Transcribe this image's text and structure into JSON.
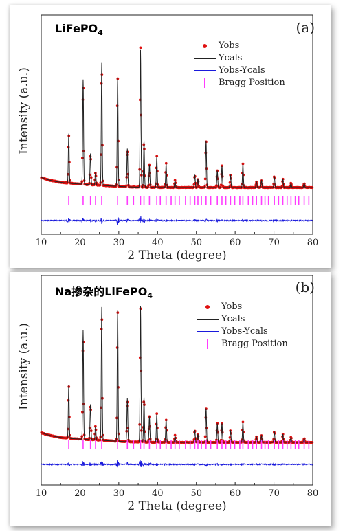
{
  "chart_data": [
    {
      "type": "line",
      "panel": "(a)",
      "title_text": "LiFePO",
      "title_sub": "4",
      "xlabel": "2 Theta (degree)",
      "ylabel": "Intensity (a.u.)",
      "xlim": [
        10,
        80
      ],
      "xticks": [
        10,
        20,
        30,
        40,
        50,
        60,
        70,
        80
      ],
      "yaxis_ticks_shown": false,
      "legend": [
        "Yobs",
        "Ycals",
        "Yobs-Ycals",
        "Bragg Position"
      ],
      "legend_position": "top-right",
      "colors": {
        "Yobs": "#e01010",
        "Ycals": "#222222",
        "Yobs-Ycals": "#1a1adc",
        "Bragg Position": "#ff3cff"
      },
      "peaks": [
        {
          "x": 17.1,
          "y": 0.35
        },
        {
          "x": 20.8,
          "y": 0.74
        },
        {
          "x": 22.7,
          "y": 0.22
        },
        {
          "x": 24.0,
          "y": 0.09
        },
        {
          "x": 25.6,
          "y": 0.87
        },
        {
          "x": 29.7,
          "y": 0.77
        },
        {
          "x": 32.2,
          "y": 0.27
        },
        {
          "x": 35.6,
          "y": 0.97
        },
        {
          "x": 36.5,
          "y": 0.33
        },
        {
          "x": 37.9,
          "y": 0.16
        },
        {
          "x": 39.8,
          "y": 0.22
        },
        {
          "x": 42.2,
          "y": 0.17
        },
        {
          "x": 44.5,
          "y": 0.05
        },
        {
          "x": 49.6,
          "y": 0.09
        },
        {
          "x": 50.4,
          "y": 0.06
        },
        {
          "x": 52.5,
          "y": 0.33
        },
        {
          "x": 55.4,
          "y": 0.12
        },
        {
          "x": 56.6,
          "y": 0.15
        },
        {
          "x": 58.8,
          "y": 0.09
        },
        {
          "x": 62.0,
          "y": 0.17
        },
        {
          "x": 65.5,
          "y": 0.04
        },
        {
          "x": 66.8,
          "y": 0.05
        },
        {
          "x": 70.1,
          "y": 0.08
        },
        {
          "x": 72.3,
          "y": 0.06
        },
        {
          "x": 74.4,
          "y": 0.03
        },
        {
          "x": 77.8,
          "y": 0.03
        }
      ],
      "bragg_positions": [
        17.1,
        20.8,
        22.7,
        24.0,
        25.6,
        29.7,
        32.2,
        33.8,
        35.6,
        36.5,
        37.9,
        39.8,
        40.7,
        42.2,
        43.5,
        44.5,
        45.6,
        47.2,
        48.4,
        49.6,
        50.4,
        51.3,
        52.5,
        53.7,
        55.4,
        56.6,
        57.6,
        58.8,
        59.9,
        61.2,
        62.0,
        63.4,
        64.5,
        65.5,
        66.8,
        67.7,
        68.6,
        70.1,
        71.2,
        72.3,
        73.4,
        74.4,
        75.5,
        76.4,
        77.8,
        79.0
      ]
    },
    {
      "type": "line",
      "panel": "(b)",
      "title_text": "Na掺杂的LiFePO",
      "title_sub": "4",
      "xlabel": "2 Theta (degree)",
      "ylabel": "Intensity (a.u.)",
      "xlim": [
        10,
        80
      ],
      "xticks": [
        10,
        20,
        30,
        40,
        50,
        60,
        70,
        80
      ],
      "yaxis_ticks_shown": false,
      "legend": [
        "Yobs",
        "Ycals",
        "Yobs-Ycals",
        "Bragg Position"
      ],
      "legend_position": "top-right",
      "colors": {
        "Yobs": "#e01010",
        "Ycals": "#222222",
        "Yobs-Ycals": "#1a1adc",
        "Bragg Position": "#ff3cff"
      },
      "peaks": [
        {
          "x": 17.1,
          "y": 0.39
        },
        {
          "x": 20.8,
          "y": 0.8
        },
        {
          "x": 22.7,
          "y": 0.26
        },
        {
          "x": 24.0,
          "y": 0.1
        },
        {
          "x": 25.6,
          "y": 0.98
        },
        {
          "x": 29.7,
          "y": 0.96
        },
        {
          "x": 32.2,
          "y": 0.32
        },
        {
          "x": 35.6,
          "y": 1.0
        },
        {
          "x": 36.5,
          "y": 0.33
        },
        {
          "x": 37.9,
          "y": 0.19
        },
        {
          "x": 39.8,
          "y": 0.21
        },
        {
          "x": 42.2,
          "y": 0.17
        },
        {
          "x": 44.5,
          "y": 0.05
        },
        {
          "x": 49.6,
          "y": 0.09
        },
        {
          "x": 50.4,
          "y": 0.06
        },
        {
          "x": 52.5,
          "y": 0.25
        },
        {
          "x": 55.4,
          "y": 0.14
        },
        {
          "x": 56.6,
          "y": 0.14
        },
        {
          "x": 58.8,
          "y": 0.09
        },
        {
          "x": 62.0,
          "y": 0.15
        },
        {
          "x": 65.5,
          "y": 0.04
        },
        {
          "x": 66.8,
          "y": 0.05
        },
        {
          "x": 70.1,
          "y": 0.08
        },
        {
          "x": 72.3,
          "y": 0.06
        },
        {
          "x": 74.4,
          "y": 0.04
        },
        {
          "x": 77.8,
          "y": 0.03
        }
      ],
      "bragg_positions": [
        17.1,
        20.8,
        22.7,
        24.0,
        25.6,
        29.7,
        32.2,
        33.8,
        35.6,
        36.5,
        37.9,
        39.8,
        40.7,
        42.2,
        43.5,
        44.5,
        45.6,
        47.2,
        48.4,
        49.6,
        50.4,
        51.3,
        52.5,
        53.7,
        55.4,
        56.6,
        57.6,
        58.8,
        59.9,
        61.2,
        62.0,
        63.4,
        64.5,
        65.5,
        66.8,
        67.7,
        68.6,
        70.1,
        71.2,
        72.3,
        73.4,
        74.4,
        75.5,
        76.4,
        77.8,
        79.0
      ]
    }
  ]
}
